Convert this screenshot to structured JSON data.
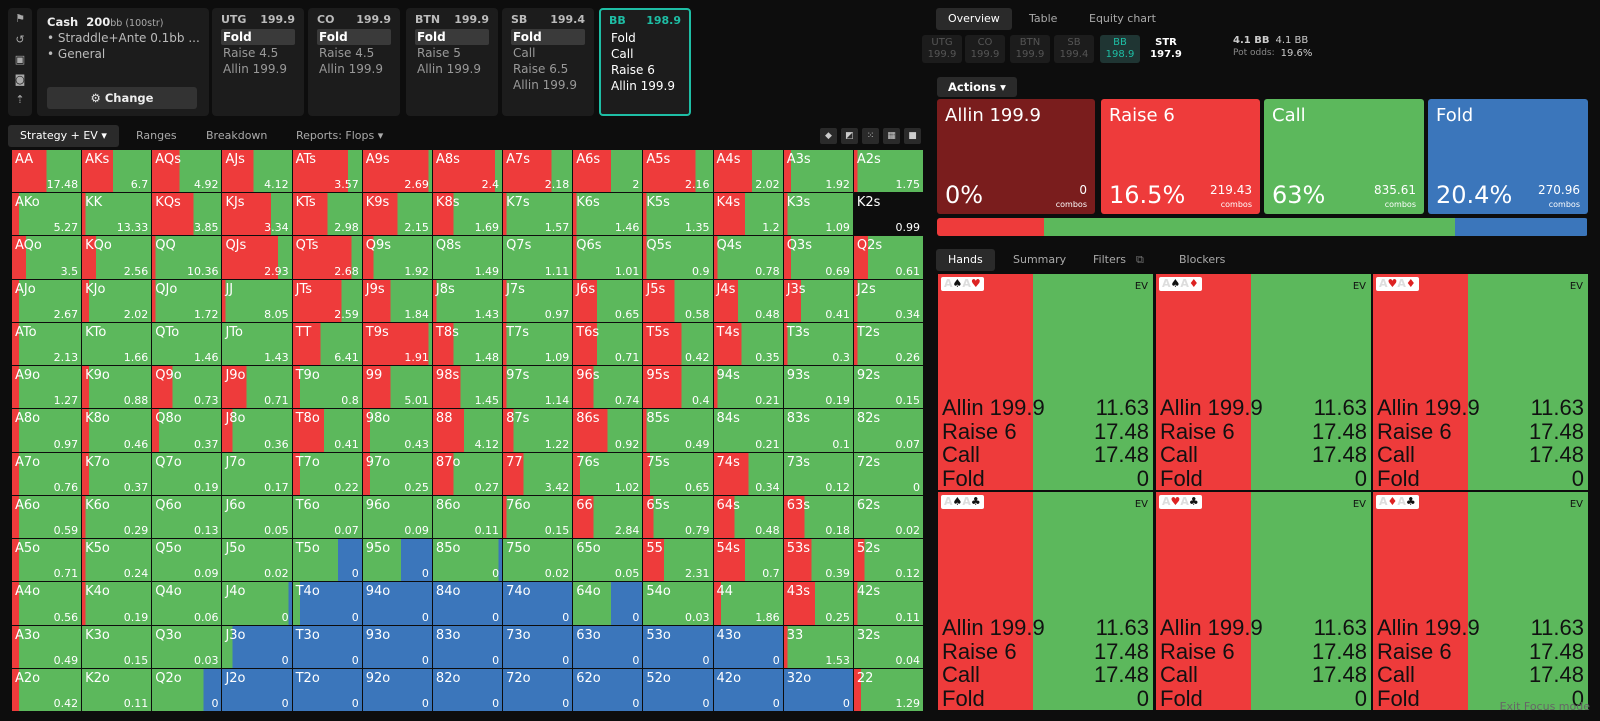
{
  "info": {
    "game": "Cash",
    "stack": "200",
    "stack_unit": "bb (100str)",
    "lines": [
      "• Straddle+Ante 0.1bb ...",
      "• General"
    ],
    "change_label": "Change"
  },
  "positions": [
    {
      "name": "UTG",
      "stack": "199.9",
      "options": [
        "Fold",
        "Raise 4.5",
        "Allin 199.9"
      ],
      "sel": 0
    },
    {
      "name": "CO",
      "stack": "199.9",
      "options": [
        "Fold",
        "Raise 4.5",
        "Allin 199.9"
      ],
      "sel": 0
    },
    {
      "name": "BTN",
      "stack": "199.9",
      "options": [
        "Fold",
        "Raise 5",
        "Allin 199.9"
      ],
      "sel": 0
    },
    {
      "name": "SB",
      "stack": "199.4",
      "options": [
        "Fold",
        "Call",
        "Raise 6.5",
        "Allin 199.9"
      ],
      "sel": 0
    },
    {
      "name": "BB",
      "stack": "198.9",
      "options": [
        "Fold",
        "Call",
        "Raise 6",
        "Allin 199.9"
      ],
      "sel": -1
    }
  ],
  "left_tabs": [
    "Strategy + EV ▾",
    "Ranges",
    "Breakdown",
    "Reports: Flops ▾"
  ],
  "view_icons": [
    "cube-icon",
    "contrast-icon",
    "split-icon",
    "grid-icon",
    "square-icon"
  ],
  "right_tabs": [
    "Overview",
    "Table",
    "Equity chart"
  ],
  "mini_positions": [
    {
      "name": "UTG",
      "val": "199.9"
    },
    {
      "name": "CO",
      "val": "199.9"
    },
    {
      "name": "BTN",
      "val": "199.9"
    },
    {
      "name": "SB",
      "val": "199.4"
    },
    {
      "name": "BB",
      "val": "198.9"
    },
    {
      "name": "STR",
      "val": "197.9"
    }
  ],
  "pot": {
    "bb1": "4.1 BB",
    "bb2": "4.1 BB",
    "odds_label": "Pot odds:",
    "odds": "19.6%"
  },
  "actions_label": "Actions ▾",
  "actions": [
    {
      "name": "Allin 199.9",
      "pct": "0%",
      "combos": "0",
      "combos_label": "combos",
      "color": "#7a1d1d",
      "frac": 0
    },
    {
      "name": "Raise 6",
      "pct": "16.5%",
      "combos": "219.43",
      "combos_label": "combos",
      "color": "#ee3b3b",
      "frac": 0.165
    },
    {
      "name": "Call",
      "pct": "63%",
      "combos": "835.61",
      "combos_label": "combos",
      "color": "#5cb85c",
      "frac": 0.63
    },
    {
      "name": "Fold",
      "pct": "20.4%",
      "combos": "270.96",
      "combos_label": "combos",
      "color": "#3b76bb",
      "frac": 0.204
    }
  ],
  "hand_tabs": [
    "Hands",
    "Summary",
    "Filters",
    "Blockers"
  ],
  "hand_cards": [
    {
      "cards": "A♠A♥",
      "ev": "EV",
      "rows": [
        [
          "Allin 199.9",
          "11.63"
        ],
        [
          "Raise 6",
          "17.48"
        ],
        [
          "Call",
          "17.48"
        ],
        [
          "Fold",
          "0"
        ]
      ]
    },
    {
      "cards": "A♠A♦",
      "ev": "EV",
      "rows": [
        [
          "Allin 199.9",
          "11.63"
        ],
        [
          "Raise 6",
          "17.48"
        ],
        [
          "Call",
          "17.48"
        ],
        [
          "Fold",
          "0"
        ]
      ]
    },
    {
      "cards": "A♥A♦",
      "ev": "EV",
      "rows": [
        [
          "Allin 199.9",
          "11.63"
        ],
        [
          "Raise 6",
          "17.48"
        ],
        [
          "Call",
          "17.48"
        ],
        [
          "Fold",
          "0"
        ]
      ]
    },
    {
      "cards": "A♠A♣",
      "ev": "EV",
      "rows": [
        [
          "Allin 199.9",
          "11.63"
        ],
        [
          "Raise 6",
          "17.48"
        ],
        [
          "Call",
          "17.48"
        ],
        [
          "Fold",
          "0"
        ]
      ]
    },
    {
      "cards": "A♥A♣",
      "ev": "EV",
      "rows": [
        [
          "Allin 199.9",
          "11.63"
        ],
        [
          "Raise 6",
          "17.48"
        ],
        [
          "Call",
          "17.48"
        ],
        [
          "Fold",
          "0"
        ]
      ]
    },
    {
      "cards": "A♦A♣",
      "ev": "EV",
      "rows": [
        [
          "Allin 199.9",
          "11.63"
        ],
        [
          "Raise 6",
          "17.48"
        ],
        [
          "Call",
          "17.48"
        ],
        [
          "Fold",
          "0"
        ]
      ]
    }
  ],
  "exit_label": "Exit Focus mode",
  "colors": {
    "raise": "#ee3b3b",
    "call": "#5cb85c",
    "fold": "#3b76bb"
  },
  "matrix": [
    [
      [
        "AA",
        "17.48",
        0.5,
        0
      ],
      [
        "AKs",
        "6.7",
        0.45,
        0
      ],
      [
        "AQs",
        "4.92",
        0.4,
        0
      ],
      [
        "AJs",
        "4.12",
        0.45,
        0
      ],
      [
        "ATs",
        "3.57",
        0.8,
        0
      ],
      [
        "A9s",
        "2.69",
        0.95,
        0
      ],
      [
        "A8s",
        "2.4",
        0.9,
        0
      ],
      [
        "A7s",
        "2.18",
        0.7,
        0
      ],
      [
        "A6s",
        "2",
        0.55,
        0
      ],
      [
        "A5s",
        "2.16",
        0.75,
        0
      ],
      [
        "A4s",
        "2.02",
        0.55,
        0
      ],
      [
        "A3s",
        "1.92",
        0.1,
        0
      ],
      [
        "A2s",
        "1.75",
        0.05,
        0
      ]
    ],
    [
      [
        "AKo",
        "5.27",
        0.1,
        0
      ],
      [
        "KK",
        "13.33",
        0.05,
        0
      ],
      [
        "KQs",
        "3.85",
        0.6,
        0
      ],
      [
        "KJs",
        "3.34",
        0.7,
        0
      ],
      [
        "KTs",
        "2.98",
        0.5,
        0
      ],
      [
        "K9s",
        "2.15",
        0.5,
        0
      ],
      [
        "K8s",
        "1.69",
        0.3,
        0
      ],
      [
        "K7s",
        "1.57",
        0.05,
        0
      ],
      [
        "K6s",
        "1.46",
        0.05,
        0
      ],
      [
        "K5s",
        "1.35",
        0.05,
        0
      ],
      [
        "K4s",
        "1.2",
        0.45,
        0
      ],
      [
        "K3s",
        "1.09",
        0.05,
        0
      ],
      [
        "K2s",
        "0.99",
        0
      ],
      0
    ],
    [
      [
        "AQo",
        "3.5",
        0.2,
        0
      ],
      [
        "KQo",
        "2.56",
        0.2,
        0
      ],
      [
        "QQ",
        "10.36",
        0.05,
        0
      ],
      [
        "QJs",
        "2.93",
        0.8,
        0
      ],
      [
        "QTs",
        "2.68",
        0.85,
        0
      ],
      [
        "Q9s",
        "1.92",
        0.15,
        0
      ],
      [
        "Q8s",
        "1.49",
        0,
        0
      ],
      [
        "Q7s",
        "1.11",
        0,
        0
      ],
      [
        "Q6s",
        "1.01",
        0.05,
        0
      ],
      [
        "Q5s",
        "0.9",
        0.05,
        0
      ],
      [
        "Q4s",
        "0.78",
        0.05,
        0
      ],
      [
        "Q3s",
        "0.69",
        0.1,
        0
      ],
      [
        "Q2s",
        "0.61",
        0.2,
        0
      ]
    ],
    [
      [
        "AJo",
        "2.67",
        0.1,
        0
      ],
      [
        "KJo",
        "2.02",
        0.1,
        0
      ],
      [
        "QJo",
        "1.72",
        0.05,
        0
      ],
      [
        "JJ",
        "8.05",
        0.05,
        0
      ],
      [
        "JTs",
        "2.59",
        0.7,
        0
      ],
      [
        "J9s",
        "1.84",
        0.4,
        0
      ],
      [
        "J8s",
        "1.43",
        0.05,
        0
      ],
      [
        "J7s",
        "0.97",
        0.05,
        0
      ],
      [
        "J6s",
        "0.65",
        0.35,
        0
      ],
      [
        "J5s",
        "0.58",
        0.45,
        0
      ],
      [
        "J4s",
        "0.48",
        0.35,
        0
      ],
      [
        "J3s",
        "0.41",
        0.25,
        0
      ],
      [
        "J2s",
        "0.34",
        0.05,
        0
      ]
    ],
    [
      [
        "ATo",
        "2.13",
        0.1,
        0
      ],
      [
        "KTo",
        "1.66",
        0,
        0
      ],
      [
        "QTo",
        "1.46",
        0,
        0
      ],
      [
        "JTo",
        "1.43",
        0,
        0
      ],
      [
        "TT",
        "6.41",
        0.4,
        0
      ],
      [
        "T9s",
        "1.91",
        0.95,
        0
      ],
      [
        "T8s",
        "1.48",
        0.3,
        0
      ],
      [
        "T7s",
        "1.09",
        0.05,
        0
      ],
      [
        "T6s",
        "0.71",
        0.35,
        0
      ],
      [
        "T5s",
        "0.42",
        0.55,
        0
      ],
      [
        "T4s",
        "0.35",
        0.4,
        0
      ],
      [
        "T3s",
        "0.3",
        0.05,
        0
      ],
      [
        "T2s",
        "0.26",
        0.05,
        0
      ]
    ],
    [
      [
        "A9o",
        "1.27",
        0.1,
        0
      ],
      [
        "K9o",
        "0.88",
        0.1,
        0
      ],
      [
        "Q9o",
        "0.73",
        0.3,
        0
      ],
      [
        "J9o",
        "0.71",
        0.35,
        0
      ],
      [
        "T9o",
        "0.8",
        0.1,
        0
      ],
      [
        "99",
        "5.01",
        0.4,
        0
      ],
      [
        "98s",
        "1.45",
        0.4,
        0
      ],
      [
        "97s",
        "1.14",
        0.05,
        0
      ],
      [
        "96s",
        "0.74",
        0.3,
        0
      ],
      [
        "95s",
        "0.4",
        0.55,
        0
      ],
      [
        "94s",
        "0.21",
        0.05,
        0
      ],
      [
        "93s",
        "0.19",
        0,
        0
      ],
      [
        "92s",
        "0.15",
        0,
        0
      ]
    ],
    [
      [
        "A8o",
        "0.97",
        0.1,
        0
      ],
      [
        "K8o",
        "0.46",
        0.1,
        0
      ],
      [
        "Q8o",
        "0.37",
        0.1,
        0
      ],
      [
        "J8o",
        "0.36",
        0.15,
        0
      ],
      [
        "T8o",
        "0.41",
        0.45,
        0
      ],
      [
        "98o",
        "0.43",
        0.1,
        0
      ],
      [
        "88",
        "4.12",
        0.45,
        0
      ],
      [
        "87s",
        "1.22",
        0.15,
        0
      ],
      [
        "86s",
        "0.92",
        0.5,
        0
      ],
      [
        "85s",
        "0.49",
        0.05,
        0
      ],
      [
        "84s",
        "0.21",
        0,
        0
      ],
      [
        "83s",
        "0.1",
        0,
        0
      ],
      [
        "82s",
        "0.07",
        0,
        0
      ]
    ],
    [
      [
        "A7o",
        "0.76",
        0.1,
        0
      ],
      [
        "K7o",
        "0.37",
        0.1,
        0
      ],
      [
        "Q7o",
        "0.19",
        0,
        0
      ],
      [
        "J7o",
        "0.17",
        0,
        0
      ],
      [
        "T7o",
        "0.22",
        0.1,
        0
      ],
      [
        "97o",
        "0.25",
        0.1,
        0
      ],
      [
        "87o",
        "0.27",
        0.3,
        0
      ],
      [
        "77",
        "3.42",
        0.3,
        0
      ],
      [
        "76s",
        "1.02",
        0.1,
        0
      ],
      [
        "75s",
        "0.65",
        0.1,
        0
      ],
      [
        "74s",
        "0.34",
        0.5,
        0
      ],
      [
        "73s",
        "0.12",
        0,
        0
      ],
      [
        "72s",
        "0",
        0,
        0
      ]
    ],
    [
      [
        "A6o",
        "0.59",
        0.1,
        0
      ],
      [
        "K6o",
        "0.29",
        0.05,
        0
      ],
      [
        "Q6o",
        "0.13",
        0,
        0
      ],
      [
        "J6o",
        "0.05",
        0,
        0
      ],
      [
        "T6o",
        "0.07",
        0,
        0
      ],
      [
        "96o",
        "0.09",
        0,
        0
      ],
      [
        "86o",
        "0.11",
        0,
        0
      ],
      [
        "76o",
        "0.15",
        0.05,
        0
      ],
      [
        "66",
        "2.84",
        0.3,
        0
      ],
      [
        "65s",
        "0.79",
        0.15,
        0
      ],
      [
        "64s",
        "0.48",
        0.3,
        0
      ],
      [
        "63s",
        "0.18",
        0.3,
        0
      ],
      [
        "62s",
        "0.02",
        0,
        0
      ]
    ],
    [
      [
        "A5o",
        "0.71",
        0.1,
        0
      ],
      [
        "K5o",
        "0.24",
        0.05,
        0
      ],
      [
        "Q5o",
        "0.09",
        0,
        0
      ],
      [
        "J5o",
        "0.02",
        0,
        0
      ],
      [
        "T5o",
        "0",
        0,
        0.35
      ],
      [
        "95o",
        "0",
        0,
        0.45
      ],
      [
        "85o",
        "0",
        0,
        0.05
      ],
      [
        "75o",
        "0.02",
        0,
        0
      ],
      [
        "65o",
        "0.05",
        0,
        0
      ],
      [
        "55",
        "2.31",
        0.3,
        0
      ],
      [
        "54s",
        "0.7",
        0.45,
        0
      ],
      [
        "53s",
        "0.39",
        0.4,
        0
      ],
      [
        "52s",
        "0.12",
        0.15,
        0
      ]
    ],
    [
      [
        "A4o",
        "0.56",
        0.1,
        0
      ],
      [
        "K4o",
        "0.19",
        0.05,
        0
      ],
      [
        "Q4o",
        "0.06",
        0,
        0
      ],
      [
        "J4o",
        "0",
        0,
        0.05
      ],
      [
        "T4o",
        "0",
        0,
        0.9
      ],
      [
        "94o",
        "0",
        0,
        1
      ],
      [
        "84o",
        "0",
        0,
        1
      ],
      [
        "74o",
        "0",
        0,
        1
      ],
      [
        "64o",
        "0",
        0,
        0.45
      ],
      [
        "54o",
        "0.03",
        0,
        0
      ],
      [
        "44",
        "1.86",
        0.1,
        0
      ],
      [
        "43s",
        "0.25",
        0.45,
        0
      ],
      [
        "42s",
        "0.11",
        0.05,
        0
      ]
    ],
    [
      [
        "A3o",
        "0.49",
        0.1,
        0
      ],
      [
        "K3o",
        "0.15",
        0,
        0
      ],
      [
        "Q3o",
        "0.03",
        0,
        0
      ],
      [
        "J3o",
        "0",
        0,
        0.85
      ],
      [
        "T3o",
        "0",
        0,
        1
      ],
      [
        "93o",
        "0",
        0,
        1
      ],
      [
        "83o",
        "0",
        0,
        1
      ],
      [
        "73o",
        "0",
        0,
        1
      ],
      [
        "63o",
        "0",
        0,
        1
      ],
      [
        "53o",
        "0",
        0,
        1
      ],
      [
        "43o",
        "0",
        0,
        1
      ],
      [
        "33",
        "1.53",
        0.05,
        0
      ],
      [
        "32s",
        "0.04",
        0,
        0
      ]
    ],
    [
      [
        "A2o",
        "0.42",
        0.1,
        0
      ],
      [
        "K2o",
        "0.11",
        0,
        0
      ],
      [
        "Q2o",
        "0",
        0,
        0.25
      ],
      [
        "J2o",
        "0",
        0,
        1
      ],
      [
        "T2o",
        "0",
        0,
        1
      ],
      [
        "92o",
        "0",
        0,
        1
      ],
      [
        "82o",
        "0",
        0,
        1
      ],
      [
        "72o",
        "0",
        0,
        1
      ],
      [
        "62o",
        "0",
        0,
        1
      ],
      [
        "52o",
        "0",
        0,
        1
      ],
      [
        "42o",
        "0",
        0,
        1
      ],
      [
        "32o",
        "0",
        0,
        1
      ],
      [
        "22",
        "1.29",
        0.1,
        0
      ]
    ]
  ]
}
